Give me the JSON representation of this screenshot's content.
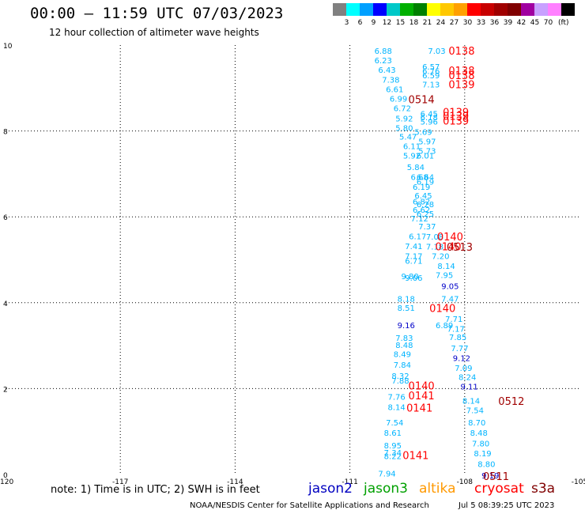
{
  "title": "00:00 – 11:59 UTC 07/03/2023",
  "subtitle": "12 hour collection of altimeter wave heights",
  "legend": {
    "colors": [
      "#808080",
      "#00ffff",
      "#00a0ff",
      "#0000ff",
      "#00c8c8",
      "#00b000",
      "#008000",
      "#ffff00",
      "#ffc800",
      "#ffa000",
      "#ff0000",
      "#c80000",
      "#a00000",
      "#800000",
      "#a000a0",
      "#c8a0ff",
      "#ff80ff",
      "#000000"
    ],
    "labels": [
      "3",
      "6",
      "9",
      "12",
      "15",
      "18",
      "21",
      "24",
      "27",
      "30",
      "33",
      "36",
      "39",
      "42",
      "45",
      "70"
    ],
    "unit": "(ft)"
  },
  "note": "note:  1) Time is in UTC;  2) SWH is in feet",
  "satellites": [
    {
      "name": "jason2",
      "color": "#0000c0"
    },
    {
      "name": "jason3",
      "color": "#00a000"
    },
    {
      "name": "altika",
      "color": "#ff9900"
    },
    {
      "name": "cryosat",
      "color": "#ff0000"
    },
    {
      "name": "s3a",
      "color": "#800000"
    }
  ],
  "credit": "NOAA/NESDIS Center for Satellite Applications and Research",
  "timestamp": "Jul  5 08:39:25 UTC 2023",
  "chart_data": {
    "type": "scatter",
    "xlim": [
      -120,
      -105
    ],
    "ylim": [
      0,
      10
    ],
    "xticks": [
      -120,
      -117,
      -114,
      -111,
      -108,
      -105
    ],
    "xtick_labels": [
      "-120",
      "-117",
      "-114",
      "-111",
      "-108",
      "-105"
    ],
    "yticks": [
      0,
      2,
      4,
      6,
      8,
      10
    ],
    "ytick_labels": [
      "0",
      "2",
      "4",
      "6",
      "8",
      "10"
    ],
    "grid": true,
    "colors": {
      "cyan": "#00b4ff",
      "blue": "#0000c8",
      "red": "#ff0000",
      "dkred": "#a00000"
    },
    "points": [
      {
        "x": -110.13,
        "y": 9.87,
        "t": "6.88",
        "c": "cyan"
      },
      {
        "x": -110.13,
        "y": 9.65,
        "t": "6.23",
        "c": "cyan"
      },
      {
        "x": -110.03,
        "y": 9.43,
        "t": "6.43",
        "c": "cyan"
      },
      {
        "x": -109.93,
        "y": 9.2,
        "t": "7.38",
        "c": "cyan"
      },
      {
        "x": -109.83,
        "y": 8.98,
        "t": "6.61",
        "c": "cyan"
      },
      {
        "x": -109.73,
        "y": 8.76,
        "t": "6.99",
        "c": "cyan"
      },
      {
        "x": -109.63,
        "y": 8.54,
        "t": "6.72",
        "c": "cyan"
      },
      {
        "x": -109.58,
        "y": 8.3,
        "t": "5.92",
        "c": "cyan"
      },
      {
        "x": -109.58,
        "y": 8.08,
        "t": "5.80",
        "c": "cyan"
      },
      {
        "x": -109.48,
        "y": 7.87,
        "t": "5.47",
        "c": "cyan"
      },
      {
        "x": -109.38,
        "y": 7.65,
        "t": "6.11",
        "c": "cyan"
      },
      {
        "x": -109.38,
        "y": 7.43,
        "t": "5.92",
        "c": "cyan"
      },
      {
        "x": -109.28,
        "y": 7.16,
        "t": "5.84",
        "c": "cyan"
      },
      {
        "x": -109.18,
        "y": 6.93,
        "t": "6.68",
        "c": "cyan"
      },
      {
        "x": -109.13,
        "y": 6.7,
        "t": "6.19",
        "c": "cyan"
      },
      {
        "x": -109.08,
        "y": 6.5,
        "t": "6.45",
        "c": "cyan"
      },
      {
        "x": -109.13,
        "y": 6.36,
        "t": "6.82",
        "c": "cyan"
      },
      {
        "x": -109.13,
        "y": 6.17,
        "t": "6.62",
        "c": "cyan"
      },
      {
        "x": -109.18,
        "y": 5.97,
        "t": "7.12",
        "c": "cyan"
      },
      {
        "x": -108.98,
        "y": 5.78,
        "t": "7.37",
        "c": "cyan"
      },
      {
        "x": -109.23,
        "y": 5.55,
        "t": "6.17",
        "c": "cyan"
      },
      {
        "x": -109.33,
        "y": 5.32,
        "t": "7.41",
        "c": "cyan"
      },
      {
        "x": -109.33,
        "y": 5.09,
        "t": "7.17",
        "c": "cyan"
      },
      {
        "x": -109.33,
        "y": 4.98,
        "t": "6.71",
        "c": "cyan"
      },
      {
        "x": -108.63,
        "y": 5.09,
        "t": "7.20",
        "c": "cyan"
      },
      {
        "x": -108.48,
        "y": 4.86,
        "t": "8.14",
        "c": "cyan"
      },
      {
        "x": -109.43,
        "y": 4.62,
        "t": "9.80",
        "c": "cyan"
      },
      {
        "x": -108.53,
        "y": 4.65,
        "t": "7.95",
        "c": "cyan"
      },
      {
        "x": -108.38,
        "y": 4.39,
        "t": "9.05",
        "c": "blue"
      },
      {
        "x": -109.53,
        "y": 4.1,
        "t": "8.18",
        "c": "cyan"
      },
      {
        "x": -108.38,
        "y": 4.1,
        "t": "7.47",
        "c": "cyan"
      },
      {
        "x": -109.53,
        "y": 3.89,
        "t": "8.51",
        "c": "cyan"
      },
      {
        "x": -108.28,
        "y": 3.63,
        "t": "7.71",
        "c": "cyan"
      },
      {
        "x": -109.53,
        "y": 3.48,
        "t": "9.16",
        "c": "blue"
      },
      {
        "x": -108.23,
        "y": 3.4,
        "t": "7.17",
        "c": "cyan"
      },
      {
        "x": -109.58,
        "y": 3.19,
        "t": "7.83",
        "c": "cyan"
      },
      {
        "x": -108.18,
        "y": 3.2,
        "t": "7.85",
        "c": "cyan"
      },
      {
        "x": -109.58,
        "y": 3.02,
        "t": "8.48",
        "c": "cyan"
      },
      {
        "x": -108.13,
        "y": 2.95,
        "t": "7.77",
        "c": "cyan"
      },
      {
        "x": -109.63,
        "y": 2.81,
        "t": "8.49",
        "c": "cyan"
      },
      {
        "x": -108.08,
        "y": 2.72,
        "t": "9.12",
        "c": "blue"
      },
      {
        "x": -109.63,
        "y": 2.56,
        "t": "7.84",
        "c": "cyan"
      },
      {
        "x": -108.03,
        "y": 2.49,
        "t": "7.09",
        "c": "cyan"
      },
      {
        "x": -109.68,
        "y": 2.3,
        "t": "8.32",
        "c": "cyan"
      },
      {
        "x": -107.93,
        "y": 2.27,
        "t": "8.24",
        "c": "cyan"
      },
      {
        "x": -109.68,
        "y": 2.19,
        "t": "7.88",
        "c": "cyan"
      },
      {
        "x": -107.88,
        "y": 2.05,
        "t": "9.11",
        "c": "blue"
      },
      {
        "x": -109.78,
        "y": 1.81,
        "t": "7.76",
        "c": "cyan"
      },
      {
        "x": -107.83,
        "y": 1.72,
        "t": "8.14",
        "c": "cyan"
      },
      {
        "x": -109.78,
        "y": 1.57,
        "t": "8.14",
        "c": "cyan"
      },
      {
        "x": -107.73,
        "y": 1.5,
        "t": "7.54",
        "c": "cyan"
      },
      {
        "x": -109.83,
        "y": 1.22,
        "t": "7.54",
        "c": "cyan"
      },
      {
        "x": -107.68,
        "y": 1.22,
        "t": "8.70",
        "c": "cyan"
      },
      {
        "x": -109.88,
        "y": 0.98,
        "t": "8.61",
        "c": "cyan"
      },
      {
        "x": -107.63,
        "y": 0.98,
        "t": "8.48",
        "c": "cyan"
      },
      {
        "x": -109.88,
        "y": 0.68,
        "t": "8.95",
        "c": "cyan"
      },
      {
        "x": -107.58,
        "y": 0.73,
        "t": "7.80",
        "c": "cyan"
      },
      {
        "x": -109.88,
        "y": 0.52,
        "t": "7.34",
        "c": "cyan"
      },
      {
        "x": -109.88,
        "y": 0.43,
        "t": "8.22",
        "c": "cyan"
      },
      {
        "x": -107.53,
        "y": 0.5,
        "t": "8.19",
        "c": "cyan"
      },
      {
        "x": -107.43,
        "y": 0.25,
        "t": "8.80",
        "c": "cyan"
      },
      {
        "x": -110.03,
        "y": 0.03,
        "t": "7.94",
        "c": "cyan"
      },
      {
        "x": -107.33,
        "y": -0.02,
        "t": "9.19",
        "c": "blue"
      },
      {
        "x": -108.73,
        "y": 9.87,
        "t": "7.03",
        "c": "cyan"
      },
      {
        "x": -108.88,
        "y": 9.5,
        "t": "6.57",
        "c": "cyan"
      },
      {
        "x": -108.88,
        "y": 9.4,
        "t": "6.76",
        "c": "cyan"
      },
      {
        "x": -108.88,
        "y": 9.3,
        "t": "6.59",
        "c": "cyan"
      },
      {
        "x": -108.88,
        "y": 9.09,
        "t": "7.13",
        "c": "cyan"
      },
      {
        "x": -108.93,
        "y": 8.41,
        "t": "6.45",
        "c": "cyan"
      },
      {
        "x": -108.93,
        "y": 8.32,
        "t": "6.18",
        "c": "cyan"
      },
      {
        "x": -108.93,
        "y": 8.22,
        "t": "5.96",
        "c": "cyan"
      },
      {
        "x": -109.08,
        "y": 7.98,
        "t": "5.69",
        "c": "cyan"
      },
      {
        "x": -108.98,
        "y": 7.76,
        "t": "5.97",
        "c": "cyan"
      },
      {
        "x": -108.98,
        "y": 7.54,
        "t": "5.73",
        "c": "cyan"
      },
      {
        "x": -109.03,
        "y": 7.43,
        "t": "6.01",
        "c": "cyan"
      },
      {
        "x": -109.03,
        "y": 6.93,
        "t": "6.64",
        "c": "cyan"
      },
      {
        "x": -109.03,
        "y": 6.82,
        "t": "6.19",
        "c": "cyan"
      },
      {
        "x": -109.03,
        "y": 6.3,
        "t": "6.28",
        "c": "cyan"
      },
      {
        "x": -109.03,
        "y": 6.08,
        "t": "6.25",
        "c": "cyan"
      },
      {
        "x": -108.78,
        "y": 5.54,
        "t": "7.08",
        "c": "cyan"
      },
      {
        "x": -108.78,
        "y": 5.31,
        "t": "7.18",
        "c": "cyan"
      },
      {
        "x": -109.33,
        "y": 4.59,
        "t": "9.06",
        "c": "cyan"
      },
      {
        "x": -108.53,
        "y": 3.48,
        "t": "6.89",
        "c": "cyan"
      },
      {
        "x": -108.08,
        "y": 9.87,
        "t": "0138",
        "c": "red",
        "big": 1
      },
      {
        "x": -108.08,
        "y": 9.41,
        "t": "0138",
        "c": "red",
        "big": 1
      },
      {
        "x": -108.08,
        "y": 9.3,
        "t": "0138",
        "c": "red",
        "big": 1
      },
      {
        "x": -108.08,
        "y": 9.09,
        "t": "0139",
        "c": "red",
        "big": 1
      },
      {
        "x": -109.13,
        "y": 8.74,
        "t": "0514",
        "c": "dkred",
        "big": 1
      },
      {
        "x": -108.23,
        "y": 8.44,
        "t": "0139",
        "c": "red",
        "big": 1
      },
      {
        "x": -108.23,
        "y": 8.35,
        "t": "0139",
        "c": "red",
        "big": 1
      },
      {
        "x": -108.23,
        "y": 8.24,
        "t": "0139",
        "c": "red",
        "big": 1
      },
      {
        "x": -108.38,
        "y": 5.54,
        "t": "0140",
        "c": "red",
        "big": 1
      },
      {
        "x": -108.43,
        "y": 5.31,
        "t": "0140",
        "c": "red",
        "big": 1
      },
      {
        "x": -108.13,
        "y": 5.3,
        "t": "0513",
        "c": "dkred",
        "big": 1
      },
      {
        "x": -108.58,
        "y": 3.88,
        "t": "0140",
        "c": "red",
        "big": 1
      },
      {
        "x": -109.13,
        "y": 2.07,
        "t": "0140",
        "c": "red",
        "big": 1
      },
      {
        "x": -109.13,
        "y": 1.84,
        "t": "0141",
        "c": "red",
        "big": 1
      },
      {
        "x": -109.18,
        "y": 1.56,
        "t": "0141",
        "c": "red",
        "big": 1
      },
      {
        "x": -106.78,
        "y": 1.71,
        "t": "0512",
        "c": "dkred",
        "big": 1
      },
      {
        "x": -109.28,
        "y": 0.45,
        "t": "0141",
        "c": "red",
        "big": 1
      },
      {
        "x": -107.18,
        "y": -0.04,
        "t": "0511",
        "c": "dkred",
        "big": 1
      }
    ]
  }
}
